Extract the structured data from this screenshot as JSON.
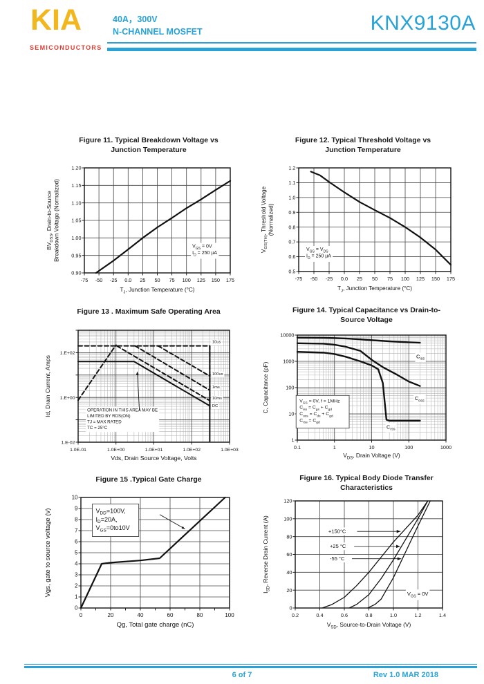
{
  "header": {
    "logo_text": "KIA",
    "logo_subtitle": "SEMICONDUCTORS",
    "rating_line1": "40A，300V",
    "rating_line2": "N-CHANNEL MOSFET",
    "part_number": "KNX9130A"
  },
  "footer": {
    "page_indicator": "6 of 7",
    "revision": "Rev 1.0 MAR 2018"
  },
  "colors": {
    "accent_cyan": "#29A3D7",
    "logo_yellow": "#F2B71E",
    "logo_red": "#E03C31",
    "chart_ink": "#1a1a1a"
  },
  "chart_data": [
    {
      "id": "fig11",
      "type": "line",
      "title": "Figure 11. Typical Breakdown Voltage vs Junction Temperature",
      "xlabel": "T[J], Junction Temperature (°C)",
      "ylabel": "BV[DSS], Drain-to-Source\nBreakdown Voltage (Normalized)",
      "xscale": "linear",
      "yscale": "linear",
      "xlim": [
        -75,
        175
      ],
      "ylim": [
        0.9,
        1.2
      ],
      "xticks": {
        "values": [
          -75,
          -50,
          -25,
          0,
          25,
          50,
          75,
          100,
          125,
          150,
          175
        ],
        "labels": [
          "-75",
          "-50",
          "-25",
          "0.0",
          "25",
          "50",
          "75",
          "100",
          "125",
          "150",
          "175"
        ]
      },
      "yticks": {
        "values": [
          0.9,
          0.95,
          1.0,
          1.05,
          1.1,
          1.15,
          1.2
        ],
        "labels": [
          "0.90",
          "0.95",
          "1.00",
          "1.05",
          "1.10",
          "1.15",
          "1.20"
        ]
      },
      "series": [
        {
          "name": "BVDSS normalized",
          "style": "solid",
          "points": [
            [
              -55,
              0.9
            ],
            [
              -25,
              0.935
            ],
            [
              0,
              0.967
            ],
            [
              25,
              1.0
            ],
            [
              50,
              1.03
            ],
            [
              75,
              1.057
            ],
            [
              100,
              1.085
            ],
            [
              125,
              1.11
            ],
            [
              150,
              1.137
            ],
            [
              175,
              1.163
            ]
          ]
        }
      ],
      "annotations": [
        {
          "x": 0.74,
          "y": 0.76,
          "box": false,
          "lines": [
            "V[GS] = 0V",
            "I[D] = 250 µA"
          ]
        }
      ]
    },
    {
      "id": "fig12",
      "type": "line",
      "title": "Figure 12.  Typical Threshold Voltage vs Junction Temperature",
      "xlabel": "T[J], Junction Temperature (°C)",
      "ylabel": "V[GS(TH)], Threshold Voltage\n(Normalized)",
      "xscale": "linear",
      "yscale": "linear",
      "xlim": [
        -75,
        175
      ],
      "ylim": [
        0.5,
        1.2
      ],
      "xticks": {
        "values": [
          -75,
          -50,
          -25,
          0,
          25,
          50,
          75,
          100,
          125,
          150,
          175
        ],
        "labels": [
          "-75",
          "-50",
          "-25",
          "0.0",
          "25",
          "50",
          "75",
          "100",
          "125",
          "150",
          "175"
        ]
      },
      "yticks": {
        "values": [
          0.5,
          0.6,
          0.7,
          0.8,
          0.9,
          1.0,
          1.1,
          1.2
        ],
        "labels": [
          "0.5",
          "0.6",
          "0.7",
          "0.8",
          "0.9",
          "1.0",
          "1.1",
          "1.2"
        ]
      },
      "series": [
        {
          "name": "VGS(TH) normalized",
          "style": "solid",
          "points": [
            [
              -55,
              1.175
            ],
            [
              -40,
              1.15
            ],
            [
              -25,
              1.105
            ],
            [
              0,
              1.035
            ],
            [
              25,
              0.97
            ],
            [
              50,
              0.915
            ],
            [
              75,
              0.862
            ],
            [
              100,
              0.8
            ],
            [
              125,
              0.73
            ],
            [
              150,
              0.648
            ],
            [
              175,
              0.545
            ]
          ]
        }
      ],
      "annotations": [
        {
          "x": 0.05,
          "y": 0.8,
          "box": false,
          "lines": [
            "V[GS] = V[DS]",
            "I[D] = 250 µA"
          ]
        }
      ]
    },
    {
      "id": "fig13",
      "type": "line",
      "title": "Figure 13 . Maximum Safe  Operating Area",
      "xlabel": "Vds, Drain Source Voltage, Volts",
      "ylabel": "Id, Drain Current, Amps",
      "xscale": "log",
      "yscale": "log",
      "xlim": [
        0.1,
        1000
      ],
      "ylim": [
        0.01,
        1000
      ],
      "xticks": {
        "values": [
          0.1,
          1,
          10,
          100,
          1000
        ],
        "labels": [
          "1.0E-01",
          "1.0E+00",
          "1.0E+01",
          "1.0E+02",
          "1.0E+03"
        ]
      },
      "yticks": {
        "values": [
          0.01,
          0.1,
          1,
          10,
          100,
          1000
        ],
        "labels": [
          "1.E-02",
          "",
          "1.E+00",
          "",
          "1.E+02",
          ""
        ]
      },
      "series": [
        {
          "name": "10us",
          "style": "dashed",
          "points": [
            [
              0.1,
              200
            ],
            [
              300,
              200
            ],
            [
              300,
              0.28
            ]
          ]
        },
        {
          "name": "100us",
          "style": "dashed",
          "points": [
            [
              13,
              200
            ],
            [
              300,
              9
            ]
          ]
        },
        {
          "name": "1ms",
          "style": "dashed",
          "points": [
            [
              3.2,
              200
            ],
            [
              300,
              2.1
            ]
          ]
        },
        {
          "name": "10ms",
          "style": "dashed",
          "points": [
            [
              1.05,
              200
            ],
            [
              300,
              0.72
            ]
          ]
        },
        {
          "name": "RDS(on) limit",
          "style": "dashed",
          "points": [
            [
              0.1,
              0.75
            ],
            [
              1.0,
              220
            ]
          ]
        },
        {
          "name": "DC",
          "style": "solid",
          "points": [
            [
              0.1,
              40
            ],
            [
              3,
              40
            ],
            [
              300,
              0.42
            ]
          ]
        },
        {
          "name": "BVDSS limit",
          "style": "solid",
          "points": [
            [
              300,
              200
            ],
            [
              300,
              0.011
            ]
          ]
        }
      ],
      "labels": [
        {
          "text": "10us",
          "x": 0.885,
          "y": 0.115
        },
        {
          "text": "100us",
          "x": 0.885,
          "y": 0.4
        },
        {
          "text": "1ms",
          "x": 0.885,
          "y": 0.52
        },
        {
          "text": "10ms",
          "x": 0.885,
          "y": 0.617
        },
        {
          "text": "DC",
          "x": 0.885,
          "y": 0.685
        }
      ],
      "annotations": [
        {
          "x": 0.06,
          "y": 0.725,
          "box": false,
          "lines": [
            "OPERATION IN THIS AREA MAY BE",
            "LIMITED BY RDS(ON)",
            "TJ = MAX RATED",
            "TC = 25°C"
          ]
        }
      ],
      "arrows": [
        {
          "x1": 0.405,
          "y1": 0.72,
          "x2": 0.39,
          "y2": 0.37
        }
      ]
    },
    {
      "id": "fig14",
      "type": "line",
      "title": "Figure 14.   Typical Capacitance vs Drain-to-Source Voltage",
      "xlabel": "V[DS], Drain Voltage (V)",
      "ylabel": "C, Capacitance (pF)",
      "xscale": "log",
      "yscale": "log",
      "xlim": [
        0.1,
        1000
      ],
      "ylim": [
        1,
        10000
      ],
      "xticks": {
        "values": [
          0.1,
          1,
          10,
          100,
          1000
        ],
        "labels": [
          "0.1",
          "1",
          "10",
          "100",
          "1000"
        ]
      },
      "yticks": {
        "values": [
          1,
          10,
          100,
          1000,
          10000
        ],
        "labels": [
          "1",
          "10",
          "100",
          "1000",
          "10000"
        ]
      },
      "series": [
        {
          "name": "Ciss",
          "style": "solid",
          "points": [
            [
              0.1,
              8000
            ],
            [
              0.5,
              7900
            ],
            [
              1,
              7700
            ],
            [
              2,
              7400
            ],
            [
              5,
              6900
            ],
            [
              10,
              6400
            ],
            [
              30,
              5800
            ],
            [
              100,
              5300
            ],
            [
              200,
              5100
            ]
          ]
        },
        {
          "name": "Coss",
          "style": "solid",
          "points": [
            [
              0.1,
              4900
            ],
            [
              0.5,
              4700
            ],
            [
              1,
              4300
            ],
            [
              2,
              3600
            ],
            [
              5,
              2500
            ],
            [
              10,
              1150
            ],
            [
              20,
              600
            ],
            [
              50,
              300
            ],
            [
              100,
              170
            ],
            [
              200,
              115
            ]
          ]
        },
        {
          "name": "Crss",
          "style": "solid",
          "points": [
            [
              0.1,
              2300
            ],
            [
              0.5,
              2150
            ],
            [
              1,
              1900
            ],
            [
              2,
              1500
            ],
            [
              5,
              1000
            ],
            [
              10,
              700
            ],
            [
              15,
              500
            ],
            [
              20,
              150
            ],
            [
              23,
              20
            ],
            [
              25,
              6
            ],
            [
              30,
              5.5
            ],
            [
              200,
              5.5
            ]
          ]
        }
      ],
      "labels": [
        {
          "text": "C[iss]",
          "x": 0.8,
          "y": 0.22
        },
        {
          "text": "C[oss]",
          "x": 0.79,
          "y": 0.62
        },
        {
          "text": "C[rss]",
          "x": 0.6,
          "y": 0.89
        }
      ],
      "annotations": [
        {
          "x": 0.015,
          "y": 0.64,
          "box": true,
          "lines": [
            "V[GS] = 0V, f = 1MHz",
            "C[iss] = C[gs] + C[gd]",
            "C[oss] = C[ds] + C[gd]",
            "C[rss] = C[gd]"
          ]
        }
      ]
    },
    {
      "id": "fig15",
      "type": "line",
      "title": "Figure 15 .Typical Gate Charge",
      "xlabel": "Qg, Total gate charge (nC)",
      "ylabel": "Vgs, gate to source voltage (v)",
      "xscale": "linear",
      "yscale": "linear",
      "xlim": [
        0,
        100
      ],
      "ylim": [
        0,
        10
      ],
      "xticks": {
        "values": [
          0,
          10,
          20,
          30,
          40,
          50,
          60,
          70,
          80,
          90,
          100
        ],
        "labels": [
          "0",
          "",
          "20",
          "",
          "40",
          "",
          "60",
          "",
          "80",
          "",
          "100"
        ]
      },
      "yticks": {
        "values": [
          0,
          1,
          2,
          3,
          4,
          5,
          6,
          7,
          8,
          9,
          10
        ],
        "labels": [
          "0",
          "1",
          "2",
          "3",
          "4",
          "5",
          "6",
          "7",
          "8",
          "9",
          "10"
        ]
      },
      "series": [
        {
          "name": "gate charge",
          "style": "solid",
          "points": [
            [
              0,
              0
            ],
            [
              14,
              4.0
            ],
            [
              20,
              4.1
            ],
            [
              40,
              4.3
            ],
            [
              53,
              4.5
            ],
            [
              97,
              10
            ]
          ]
        }
      ],
      "annotations": [
        {
          "x": 0.1,
          "y": 0.14,
          "box": true,
          "lines": [
            "V[DD]=100V,",
            "I[D]=20A,",
            "V[GS]=0to10V"
          ]
        }
      ],
      "arrows": [
        {
          "x1": 0.53,
          "y1": 0.155,
          "x2": 0.7,
          "y2": 0.285
        }
      ]
    },
    {
      "id": "fig16",
      "type": "line",
      "title": "Figure 16.    Typical Body Diode Transfer Characteristics",
      "xlabel": "V[SD], Source-to-Drain Voltage (V)",
      "ylabel": "I[SD], Reverse Drain Current (A)",
      "xscale": "linear",
      "yscale": "linear",
      "xlim": [
        0.2,
        1.4
      ],
      "ylim": [
        0,
        120
      ],
      "xticks": {
        "values": [
          0.2,
          0.4,
          0.6,
          0.8,
          1.0,
          1.2,
          1.4
        ],
        "labels": [
          "0.2",
          "0.4",
          "0.6",
          "0.8",
          "1.0",
          "1.2",
          "1.4"
        ]
      },
      "yticks": {
        "values": [
          0,
          20,
          40,
          60,
          80,
          100,
          120
        ],
        "labels": [
          "0",
          "20",
          "40",
          "60",
          "80",
          "100",
          "120"
        ]
      },
      "series": [
        {
          "name": "+150°C",
          "style": "solid",
          "points": [
            [
              0.42,
              0
            ],
            [
              0.5,
              4
            ],
            [
              0.6,
              12
            ],
            [
              0.7,
              25
            ],
            [
              0.8,
              40
            ],
            [
              0.9,
              57
            ],
            [
              1.0,
              74
            ],
            [
              1.1,
              89
            ],
            [
              1.2,
              104
            ],
            [
              1.28,
              120
            ]
          ]
        },
        {
          "name": "+25°C",
          "style": "solid",
          "points": [
            [
              0.64,
              0
            ],
            [
              0.7,
              4
            ],
            [
              0.8,
              15
            ],
            [
              0.9,
              33
            ],
            [
              1.0,
              54
            ],
            [
              1.1,
              77
            ],
            [
              1.2,
              100
            ],
            [
              1.28,
              120
            ]
          ]
        },
        {
          "name": "-55°C",
          "style": "solid",
          "points": [
            [
              0.79,
              0
            ],
            [
              0.85,
              4
            ],
            [
              0.9,
              10
            ],
            [
              1.0,
              34
            ],
            [
              1.1,
              63
            ],
            [
              1.2,
              92
            ],
            [
              1.3,
              120
            ]
          ]
        }
      ],
      "labels": [
        {
          "text": "+150°C",
          "x": 0.225,
          "y": 0.3
        },
        {
          "text": "+25 °C",
          "x": 0.235,
          "y": 0.44
        },
        {
          "text": "-55 °C",
          "x": 0.235,
          "y": 0.555
        }
      ],
      "annotations": [
        {
          "x": 0.76,
          "y": 0.885,
          "box": false,
          "lines": [
            "V[GS] = 0V"
          ]
        }
      ],
      "arrows": [
        {
          "x1": 0.42,
          "y1": 0.285,
          "x2": 0.715,
          "y2": 0.285
        },
        {
          "x1": 0.4,
          "y1": 0.425,
          "x2": 0.712,
          "y2": 0.425
        },
        {
          "x1": 0.385,
          "y1": 0.54,
          "x2": 0.72,
          "y2": 0.54
        }
      ]
    }
  ]
}
